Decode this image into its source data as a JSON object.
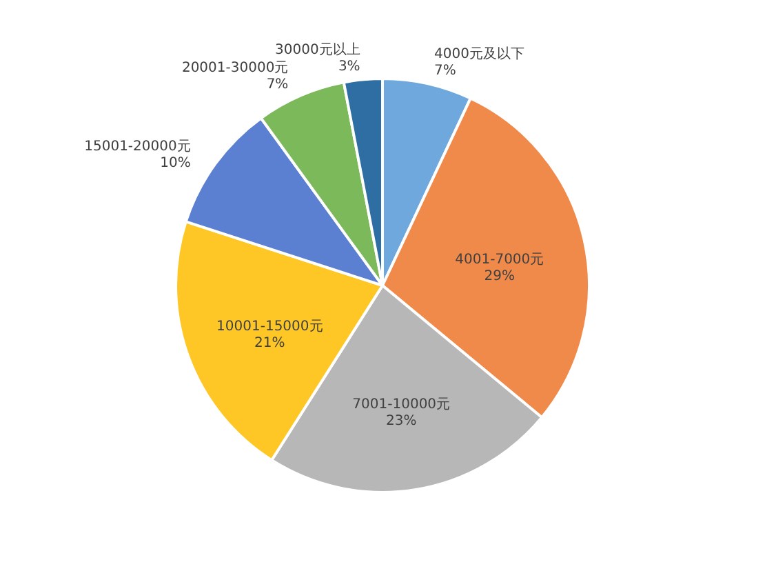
{
  "chart_data": {
    "type": "pie",
    "categories": [
      "4000元及以下",
      "4001-7000元",
      "7001-10000元",
      "10001-15000元",
      "15001-20000元",
      "20001-30000元",
      "30000元以上"
    ],
    "values": [
      7,
      29,
      23,
      21,
      10,
      7,
      3
    ],
    "value_labels": [
      "7%",
      "29%",
      "23%",
      "21%",
      "10%",
      "7%",
      "3%"
    ],
    "colors": [
      "#6fa8dc",
      "#f08a4b",
      "#b7b7b7",
      "#ffc726",
      "#5b7fd1",
      "#7cb95a",
      "#2f6ea3"
    ],
    "legend": false
  }
}
